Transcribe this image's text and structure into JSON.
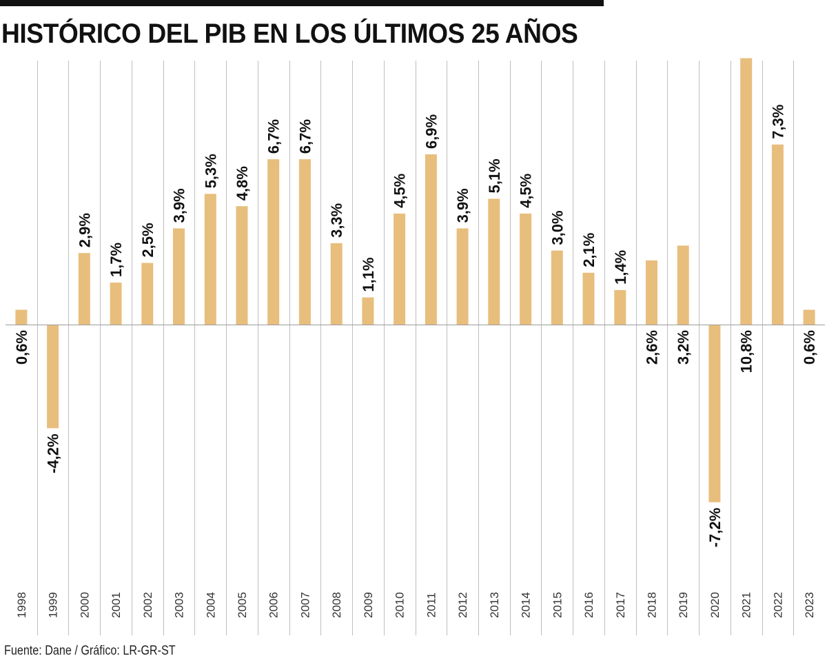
{
  "chart_data": {
    "type": "bar",
    "title": "HISTÓRICO DEL PIB EN LOS ÚLTIMOS 25 AÑOS",
    "source": "Fuente: Dane / Gráfico: LR-GR-ST",
    "xlabel": "",
    "ylabel": "",
    "categories": [
      "1998",
      "1999",
      "2000",
      "2001",
      "2002",
      "2003",
      "2004",
      "2005",
      "2006",
      "2007",
      "2008",
      "2009",
      "2010",
      "2011",
      "2012",
      "2013",
      "2014",
      "2015",
      "2016",
      "2017",
      "2018",
      "2019",
      "2020",
      "2021",
      "2022",
      "2023"
    ],
    "values": [
      0.6,
      -4.2,
      2.9,
      1.7,
      2.5,
      3.9,
      5.3,
      4.8,
      6.7,
      6.7,
      3.3,
      1.1,
      4.5,
      6.9,
      3.9,
      5.1,
      4.5,
      3.0,
      2.1,
      1.4,
      2.6,
      3.2,
      -7.2,
      10.8,
      7.3,
      0.6
    ],
    "labels": [
      "0,6%",
      "-4,2%",
      "2,9%",
      "1,7%",
      "2,5%",
      "3,9%",
      "5,3%",
      "4,8%",
      "6,7%",
      "6,7%",
      "3,3%",
      "1,1%",
      "4,5%",
      "6,9%",
      "3,9%",
      "5,1%",
      "4,5%",
      "3,0%",
      "2,1%",
      "1,4%",
      "2,6%",
      "3,2%",
      "-7,2%",
      "10,8%",
      "7,3%",
      "0,6%"
    ],
    "ylim": [
      -11,
      11
    ],
    "grid": true,
    "colors": {
      "bar": "#E8BE7D",
      "grid": "#BEBEBE",
      "axis": "#9A9A9A"
    }
  }
}
